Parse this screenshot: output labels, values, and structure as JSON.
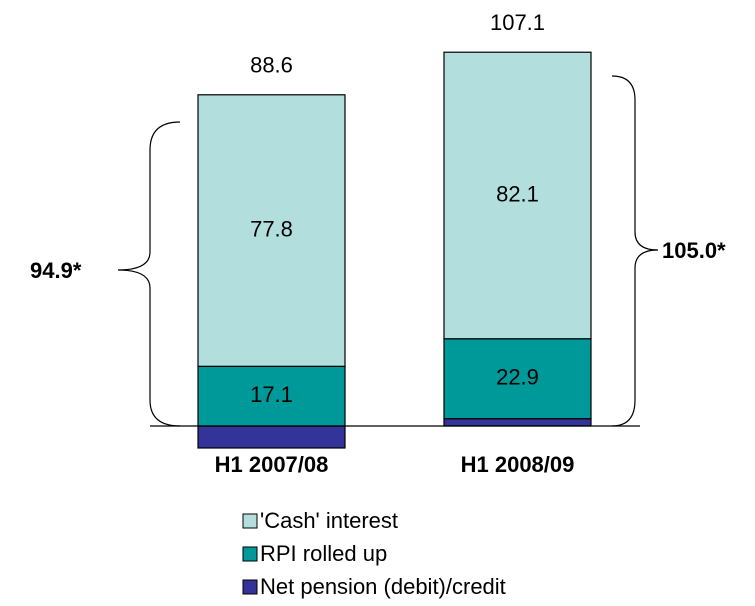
{
  "chart_data": {
    "type": "bar",
    "stacked": true,
    "categories": [
      "H1 2007/08",
      "H1 2008/09"
    ],
    "series": [
      {
        "name": "Net pension (debit)/credit",
        "color": "#333399",
        "values": [
          -6.3,
          2.1
        ]
      },
      {
        "name": "RPI rolled up",
        "color": "#009999",
        "values": [
          17.1,
          22.9
        ]
      },
      {
        "name": "'Cash' interest",
        "color": "#b3dede",
        "values": [
          77.8,
          82.1
        ]
      }
    ],
    "totals": [
      88.6,
      107.1
    ],
    "annotations": [
      "94.9*",
      "105.0*"
    ],
    "legend": "bottom"
  }
}
